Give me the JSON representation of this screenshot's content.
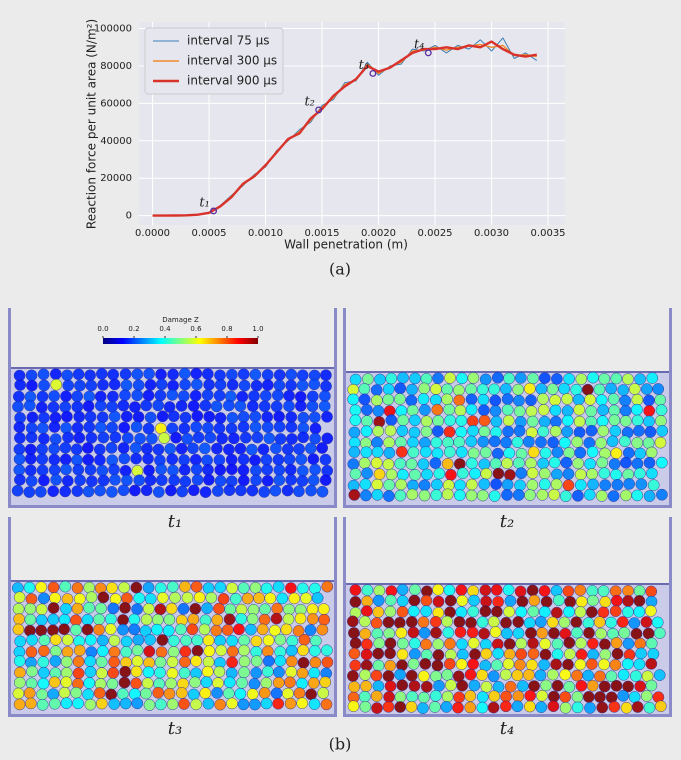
{
  "chart_data": {
    "type": "line",
    "xlabel": "Wall penetration (m)",
    "ylabel": "Reaction force per unit area (N/m²)",
    "x": [
      0,
      0.0001,
      0.0002,
      0.0003,
      0.0004,
      0.0005,
      0.0006,
      0.0007,
      0.0008,
      0.0009,
      0.001,
      0.0011,
      0.0012,
      0.0013,
      0.0014,
      0.0015,
      0.0016,
      0.0017,
      0.0018,
      0.0019,
      0.002,
      0.0021,
      0.0022,
      0.0023,
      0.0024,
      0.0025,
      0.0026,
      0.0027,
      0.0028,
      0.0029,
      0.003,
      0.0031,
      0.0032,
      0.0033,
      0.0034
    ],
    "series": [
      {
        "name": "interval 75 μs",
        "color": "#3b7fb8",
        "width": 1,
        "values": [
          0,
          0,
          100,
          200,
          600,
          1800,
          5500,
          11000,
          16000,
          22000,
          26000,
          35000,
          40000,
          46000,
          50000,
          59000,
          62000,
          71000,
          72000,
          82000,
          75000,
          80000,
          81000,
          89000,
          88000,
          91000,
          87000,
          91000,
          89000,
          94000,
          88000,
          95000,
          84000,
          87000,
          83000
        ]
      },
      {
        "name": "interval 300 μs",
        "color": "#f08a2c",
        "width": 1.4,
        "values": [
          0,
          0,
          100,
          200,
          550,
          1600,
          5200,
          10500,
          16500,
          21500,
          26500,
          34500,
          40500,
          45000,
          51000,
          58000,
          63000,
          70000,
          72500,
          81000,
          76000,
          79500,
          82000,
          88000,
          88500,
          90000,
          88500,
          90000,
          90500,
          91500,
          90000,
          91000,
          85500,
          86000,
          85000
        ]
      },
      {
        "name": "interval 900 μs",
        "color": "#d8322b",
        "width": 2.4,
        "values": [
          0,
          0,
          100,
          200,
          500,
          1500,
          5000,
          10000,
          17000,
          21000,
          27000,
          34000,
          41000,
          44000,
          52000,
          57000,
          64000,
          69000,
          73000,
          80000,
          77000,
          79000,
          83000,
          87000,
          89000,
          89000,
          90000,
          89000,
          91000,
          90000,
          93000,
          89000,
          86000,
          85000,
          86000
        ]
      }
    ],
    "annotations": [
      {
        "label": "t₁",
        "x": 0.00054,
        "y": 2500
      },
      {
        "label": "t₂",
        "x": 0.00147,
        "y": 56500
      },
      {
        "label": "t₃",
        "x": 0.00195,
        "y": 76000
      },
      {
        "label": "t₄",
        "x": 0.00244,
        "y": 87000
      }
    ],
    "xlim": [
      -0.00012,
      0.00365
    ],
    "ylim": [
      -5000,
      103500
    ],
    "xticks": [
      {
        "value": 0,
        "label": "0.0000"
      },
      {
        "value": 0.0005,
        "label": "0.0005"
      },
      {
        "value": 0.001,
        "label": "0.0010"
      },
      {
        "value": 0.0015,
        "label": "0.0015"
      },
      {
        "value": 0.002,
        "label": "0.0020"
      },
      {
        "value": 0.0025,
        "label": "0.0025"
      },
      {
        "value": 0.003,
        "label": "0.0030"
      },
      {
        "value": 0.0035,
        "label": "0.0035"
      }
    ],
    "yticks": [
      0,
      20000,
      40000,
      60000,
      80000,
      100000
    ],
    "grid": true,
    "legend": "upper left",
    "caption": "(a)"
  },
  "panel_b": {
    "caption": "(b)",
    "colorbar": {
      "label": "Damage Z",
      "ticks": [
        {
          "value": 0,
          "label": "0.0"
        },
        {
          "value": 0.2,
          "label": "0.2"
        },
        {
          "value": 0.4,
          "label": "0.4"
        },
        {
          "value": 0.6,
          "label": "0.6"
        },
        {
          "value": 0.8,
          "label": "0.8"
        },
        {
          "value": 1,
          "label": "1.0"
        }
      ]
    },
    "images": [
      {
        "label": "t₁"
      },
      {
        "label": "t₂"
      },
      {
        "label": "t₃"
      },
      {
        "label": "t₄"
      }
    ]
  }
}
